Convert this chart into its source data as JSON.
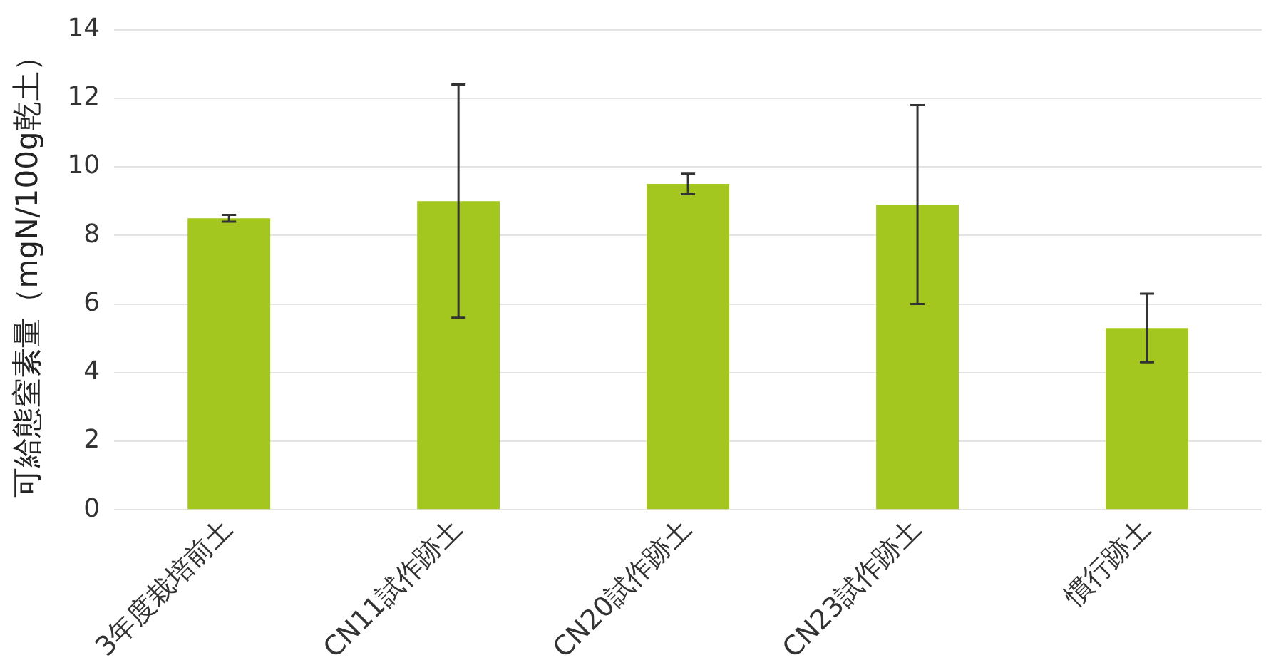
{
  "chart_data": {
    "type": "bar",
    "ylabel": "可給態窒素量（mgN/100g乾土）",
    "categories": [
      "3年度栽培前土",
      "CN11試作跡土",
      "CN20試作跡土",
      "CN23試作跡土",
      "慣行跡土"
    ],
    "values": [
      8.5,
      9.0,
      9.5,
      8.9,
      5.3
    ],
    "errors": [
      0.1,
      3.4,
      0.3,
      2.9,
      1.0
    ],
    "color": "#a3c71e",
    "ylim": [
      0,
      14
    ],
    "yticks": [
      0,
      2,
      4,
      6,
      8,
      10,
      12,
      14
    ],
    "grid": "y",
    "legend": false
  }
}
